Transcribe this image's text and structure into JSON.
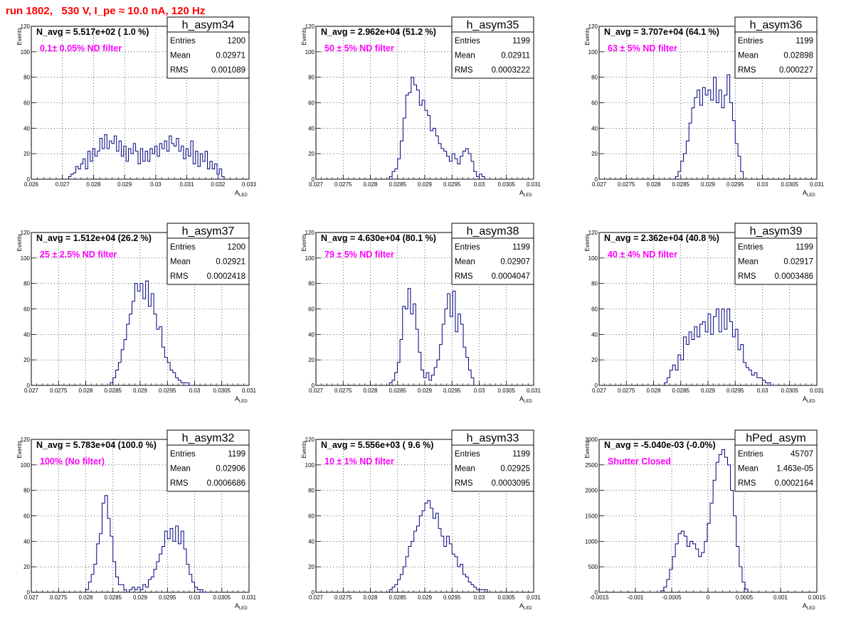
{
  "page": {
    "title": "run 1802,   530 V, I_pe ≈ 10.0 nA, 120 Hz",
    "colors": {
      "title": "#ff0000",
      "histogram": "#000080",
      "annotation": "#ff00ff",
      "grid": "#000000",
      "background": "#ffffff"
    }
  },
  "chart_data": [
    {
      "type": "histogram",
      "name": "h_asym34",
      "navg": "N_avg = 5.517e+02 ( 1.0 %)",
      "label": "0.1± 0.05% ND filter",
      "stats": [
        [
          "Entries",
          "1200"
        ],
        [
          "Mean",
          "0.02971"
        ],
        [
          "RMS",
          "0.001089"
        ]
      ],
      "xlabel": "A",
      "xlabel_sub": "LED",
      "ylabel": "Events",
      "xlim": [
        0.026,
        0.033
      ],
      "ylim": [
        0,
        120
      ],
      "xticks": [
        "0.026",
        "0.027",
        "0.028",
        "0.029",
        "0.03",
        "0.031",
        "0.032",
        "0.033"
      ],
      "yticks": [
        "0",
        "20",
        "40",
        "60",
        "80",
        "100",
        "120"
      ],
      "grid": true,
      "bin_range": [
        0.0272,
        0.0322
      ],
      "counts": [
        2,
        4,
        5,
        10,
        8,
        12,
        16,
        8,
        22,
        14,
        24,
        18,
        22,
        32,
        24,
        35,
        24,
        30,
        28,
        34,
        22,
        30,
        18,
        26,
        14,
        24,
        20,
        28,
        22,
        12,
        24,
        14,
        22,
        14,
        24,
        20,
        26,
        18,
        28,
        24,
        30,
        22,
        34,
        28,
        26,
        32,
        22,
        26,
        16,
        24,
        18,
        30,
        12,
        22,
        10,
        20,
        14,
        22,
        8,
        14,
        8,
        12,
        4,
        8,
        2
      ]
    },
    {
      "type": "histogram",
      "name": "h_asym35",
      "navg": "N_avg = 2.962e+04 (51.2 %)",
      "label": "50 ± 5% ND filter",
      "stats": [
        [
          "Entries",
          "1199"
        ],
        [
          "Mean",
          "0.02911"
        ],
        [
          "RMS",
          "0.0003222"
        ]
      ],
      "xlabel": "A",
      "xlabel_sub": "LED",
      "ylabel": "Events",
      "xlim": [
        0.027,
        0.031
      ],
      "ylim": [
        0,
        120
      ],
      "xticks": [
        "0.027",
        "0.0275",
        "0.028",
        "0.0285",
        "0.029",
        "0.0295",
        "0.03",
        "0.0305",
        "0.031"
      ],
      "yticks": [
        "0",
        "20",
        "40",
        "60",
        "80",
        "100",
        "120"
      ],
      "grid": true,
      "bin_range": [
        0.02835,
        0.03015
      ],
      "counts": [
        2,
        6,
        8,
        16,
        30,
        48,
        66,
        68,
        80,
        74,
        70,
        58,
        62,
        54,
        50,
        38,
        40,
        34,
        28,
        24,
        22,
        18,
        14,
        20,
        16,
        12,
        18,
        22,
        24,
        20,
        14,
        6,
        2,
        4,
        2,
        0
      ]
    },
    {
      "type": "histogram",
      "name": "h_asym36",
      "navg": "N_avg = 3.707e+04 (64.1 %)",
      "label": "63 ± 5% ND filter",
      "stats": [
        [
          "Entries",
          "1199"
        ],
        [
          "Mean",
          "0.02898"
        ],
        [
          "RMS",
          "0.000227"
        ]
      ],
      "xlabel": "A",
      "xlabel_sub": "LED",
      "ylabel": "Events",
      "xlim": [
        0.027,
        0.031
      ],
      "ylim": [
        0,
        120
      ],
      "xticks": [
        "0.027",
        "0.0275",
        "0.028",
        "0.0285",
        "0.029",
        "0.0295",
        "0.03",
        "0.0305",
        "0.031"
      ],
      "yticks": [
        "0",
        "20",
        "40",
        "60",
        "80",
        "100",
        "120"
      ],
      "grid": true,
      "bin_range": [
        0.0284,
        0.02965
      ],
      "counts": [
        2,
        6,
        14,
        20,
        30,
        44,
        56,
        64,
        70,
        58,
        72,
        66,
        70,
        62,
        80,
        60,
        70,
        56,
        66,
        82,
        60,
        46,
        28,
        18,
        6
      ]
    },
    {
      "type": "histogram",
      "name": "h_asym37",
      "navg": "N_avg = 1.512e+04 (26.2 %)",
      "label": "25 ± 2.5% ND filter",
      "stats": [
        [
          "Entries",
          "1200"
        ],
        [
          "Mean",
          "0.02921"
        ],
        [
          "RMS",
          "0.0002418"
        ]
      ],
      "xlabel": "A",
      "xlabel_sub": "LED",
      "ylabel": "Events",
      "xlim": [
        0.027,
        0.031
      ],
      "ylim": [
        0,
        120
      ],
      "xticks": [
        "0.027",
        "0.0275",
        "0.028",
        "0.0285",
        "0.029",
        "0.0295",
        "0.03",
        "0.0305",
        "0.031"
      ],
      "yticks": [
        "0",
        "20",
        "40",
        "60",
        "80",
        "100",
        "120"
      ],
      "grid": true,
      "bin_range": [
        0.02845,
        0.02995
      ],
      "counts": [
        2,
        6,
        12,
        18,
        28,
        36,
        48,
        56,
        66,
        80,
        74,
        80,
        68,
        82,
        62,
        72,
        56,
        44,
        46,
        30,
        22,
        18,
        12,
        10,
        6,
        4,
        2,
        2,
        2,
        0
      ]
    },
    {
      "type": "histogram",
      "name": "h_asym38",
      "navg": "N_avg = 4.630e+04 (80.1 %)",
      "label": "79 ± 5% ND filter",
      "stats": [
        [
          "Entries",
          "1199"
        ],
        [
          "Mean",
          "0.02907"
        ],
        [
          "RMS",
          "0.0004047"
        ]
      ],
      "xlabel": "A",
      "xlabel_sub": "LED",
      "ylabel": "Events",
      "xlim": [
        0.027,
        0.031
      ],
      "ylim": [
        0,
        120
      ],
      "xticks": [
        "0.027",
        "0.0275",
        "0.028",
        "0.0285",
        "0.029",
        "0.0295",
        "0.03",
        "0.0305",
        "0.031"
      ],
      "yticks": [
        "0",
        "20",
        "40",
        "60",
        "80",
        "100",
        "120"
      ],
      "grid": true,
      "bin_range": [
        0.02835,
        0.0299
      ],
      "counts": [
        2,
        4,
        10,
        18,
        36,
        62,
        60,
        76,
        56,
        64,
        44,
        26,
        12,
        6,
        10,
        4,
        8,
        14,
        20,
        32,
        48,
        60,
        72,
        54,
        74,
        42,
        56,
        48,
        30,
        22,
        12,
        6
      ]
    },
    {
      "type": "histogram",
      "name": "h_asym39",
      "navg": "N_avg = 2.362e+04 (40.8 %)",
      "label": "40 ± 4% ND filter",
      "stats": [
        [
          "Entries",
          "1199"
        ],
        [
          "Mean",
          "0.02917"
        ],
        [
          "RMS",
          "0.0003486"
        ]
      ],
      "xlabel": "A",
      "xlabel_sub": "LED",
      "ylabel": "Events",
      "xlim": [
        0.027,
        0.031
      ],
      "ylim": [
        0,
        120
      ],
      "xticks": [
        "0.027",
        "0.0275",
        "0.028",
        "0.0285",
        "0.029",
        "0.0295",
        "0.03",
        "0.0305",
        "0.031"
      ],
      "yticks": [
        "0",
        "20",
        "40",
        "60",
        "80",
        "100",
        "120"
      ],
      "grid": true,
      "bin_range": [
        0.0282,
        0.0302
      ],
      "counts": [
        2,
        6,
        12,
        16,
        12,
        24,
        20,
        38,
        32,
        42,
        36,
        46,
        38,
        48,
        50,
        42,
        56,
        40,
        54,
        60,
        42,
        60,
        44,
        60,
        50,
        38,
        44,
        28,
        32,
        18,
        14,
        12,
        8,
        10,
        6,
        6,
        4,
        2,
        2,
        0
      ]
    },
    {
      "type": "histogram",
      "name": "h_asym32",
      "navg": "N_avg = 5.783e+04 (100.0 %)",
      "label": "100% (No filter)",
      "stats": [
        [
          "Entries",
          "1199"
        ],
        [
          "Mean",
          "0.02906"
        ],
        [
          "RMS",
          "0.0006686"
        ]
      ],
      "xlabel": "A",
      "xlabel_sub": "LED",
      "ylabel": "Events",
      "xlim": [
        0.027,
        0.031
      ],
      "ylim": [
        0,
        120
      ],
      "xticks": [
        "0.027",
        "0.0275",
        "0.028",
        "0.0285",
        "0.029",
        "0.0295",
        "0.03",
        "0.0305",
        "0.031"
      ],
      "yticks": [
        "0",
        "20",
        "40",
        "60",
        "80",
        "100",
        "120"
      ],
      "grid": true,
      "bin_range": [
        0.028,
        0.03025
      ],
      "counts": [
        2,
        8,
        14,
        22,
        38,
        46,
        70,
        76,
        58,
        44,
        24,
        12,
        6,
        6,
        2,
        0,
        2,
        4,
        2,
        4,
        2,
        6,
        4,
        10,
        12,
        18,
        24,
        30,
        36,
        48,
        42,
        50,
        40,
        52,
        38,
        48,
        34,
        22,
        14,
        8,
        4,
        2,
        2,
        0,
        0
      ]
    },
    {
      "type": "histogram",
      "name": "h_asym33",
      "navg": "N_avg = 5.556e+03 ( 9.6 %)",
      "label": "10 ± 1% ND filter",
      "stats": [
        [
          "Entries",
          "1199"
        ],
        [
          "Mean",
          "0.02925"
        ],
        [
          "RMS",
          "0.0003095"
        ]
      ],
      "xlabel": "A",
      "xlabel_sub": "LED",
      "ylabel": "Events",
      "xlim": [
        0.027,
        0.031
      ],
      "ylim": [
        0,
        120
      ],
      "xticks": [
        "0.027",
        "0.0275",
        "0.028",
        "0.0285",
        "0.029",
        "0.0295",
        "0.03",
        "0.0305",
        "0.031"
      ],
      "yticks": [
        "0",
        "20",
        "40",
        "60",
        "80",
        "100",
        "120"
      ],
      "grid": true,
      "bin_range": [
        0.02835,
        0.0302
      ],
      "counts": [
        2,
        4,
        6,
        10,
        14,
        20,
        28,
        36,
        40,
        48,
        52,
        60,
        64,
        70,
        72,
        66,
        58,
        62,
        50,
        44,
        36,
        44,
        38,
        30,
        28,
        20,
        22,
        14,
        12,
        8,
        6,
        4,
        2,
        2,
        2,
        2,
        0
      ]
    },
    {
      "type": "histogram",
      "name": "hPed_asym",
      "navg": "N_avg = -5.040e-03 (-0.0%)",
      "label": "Shutter Closed",
      "stats": [
        [
          "Entries",
          "45707"
        ],
        [
          "Mean",
          "1.463e-05"
        ],
        [
          "RMS",
          "0.0002164"
        ]
      ],
      "xlabel": "A",
      "xlabel_sub": "LED",
      "ylabel": "Events",
      "xlim": [
        -0.0015,
        0.0015
      ],
      "ylim": [
        0,
        3000
      ],
      "xticks": [
        "-0.0015",
        "-0.001",
        "-0.0005",
        "0",
        "0.0005",
        "0.001",
        "0.0015"
      ],
      "yticks": [
        "0",
        "500",
        "1000",
        "1500",
        "2000",
        "2500",
        "3000"
      ],
      "grid": true,
      "bin_range": [
        -0.00065,
        0.00055
      ],
      "counts": [
        30,
        100,
        250,
        450,
        700,
        950,
        1150,
        1200,
        1100,
        900,
        1000,
        950,
        850,
        700,
        780,
        1000,
        1350,
        1750,
        2200,
        2550,
        2700,
        2800,
        2650,
        2500,
        2000,
        1500,
        900,
        500,
        200,
        60
      ]
    }
  ]
}
